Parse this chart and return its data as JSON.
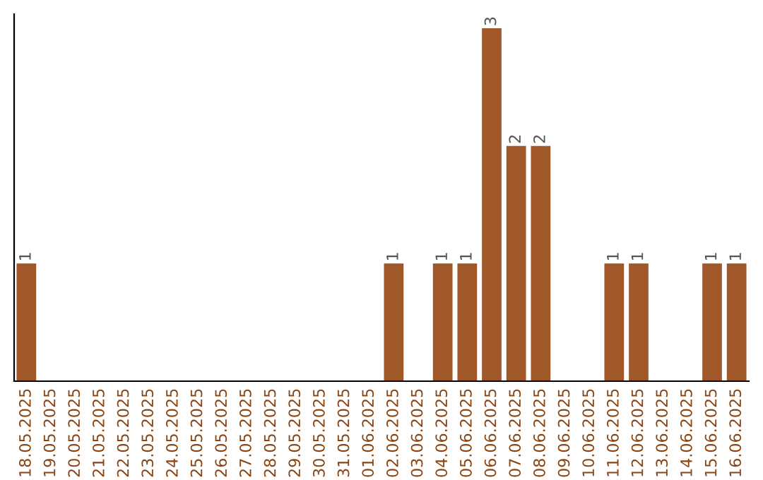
{
  "chart_data": {
    "type": "bar",
    "categories": [
      "18.05.2025",
      "19.05.2025",
      "20.05.2025",
      "21.05.2025",
      "22.05.2025",
      "23.05.2025",
      "24.05.2025",
      "25.05.2025",
      "26.05.2025",
      "27.05.2025",
      "28.05.2025",
      "29.05.2025",
      "30.05.2025",
      "31.05.2025",
      "01.06.2025",
      "02.06.2025",
      "03.06.2025",
      "04.06.2025",
      "05.06.2025",
      "06.06.2025",
      "07.06.2025",
      "08.06.2025",
      "09.06.2025",
      "10.06.2025",
      "11.06.2025",
      "12.06.2025",
      "13.06.2025",
      "14.06.2025",
      "15.06.2025",
      "16.06.2025"
    ],
    "values": [
      1,
      0,
      0,
      0,
      0,
      0,
      0,
      0,
      0,
      0,
      0,
      0,
      0,
      0,
      0,
      1,
      0,
      1,
      1,
      3,
      2,
      2,
      0,
      0,
      1,
      1,
      0,
      0,
      1,
      1
    ],
    "value_labels": [
      "1",
      null,
      null,
      null,
      null,
      null,
      null,
      null,
      null,
      null,
      null,
      null,
      null,
      null,
      null,
      "1",
      null,
      "1",
      "1",
      "3",
      "2",
      "2",
      null,
      null,
      "1",
      "1",
      null,
      null,
      "1",
      "1"
    ],
    "color": "#a0572a",
    "ylim": [
      0,
      3.12
    ],
    "tick_labels": "x",
    "grid": false,
    "legend": false
  }
}
